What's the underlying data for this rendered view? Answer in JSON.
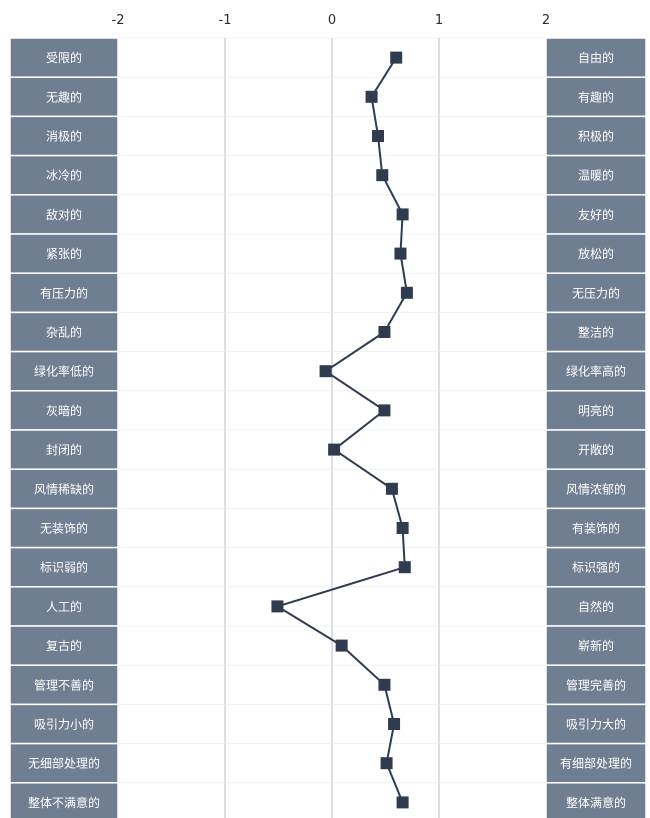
{
  "chart_data": {
    "type": "line",
    "x_ticks": [
      -2,
      -1,
      0,
      1,
      2
    ],
    "xlim": [
      -2,
      2
    ],
    "grid": true,
    "colors": {
      "label_bg": "#6f7e91",
      "label_border": "#ffffff",
      "grid": "#b7bfca",
      "line": "#2f3c4f",
      "marker": "#2f3c4f"
    },
    "items": [
      {
        "left": "受限的",
        "right": "自由的",
        "value": 0.6
      },
      {
        "left": "无趣的",
        "right": "有趣的",
        "value": 0.37
      },
      {
        "left": "消极的",
        "right": "积极的",
        "value": 0.43
      },
      {
        "left": "冰冷的",
        "right": "温暖的",
        "value": 0.47
      },
      {
        "left": "敌对的",
        "right": "友好的",
        "value": 0.66
      },
      {
        "left": "紧张的",
        "right": "放松的",
        "value": 0.64
      },
      {
        "left": "有压力的",
        "right": "无压力的",
        "value": 0.7
      },
      {
        "left": "杂乱的",
        "right": "整洁的",
        "value": 0.49
      },
      {
        "left": "绿化率低的",
        "right": "绿化率高的",
        "value": -0.06
      },
      {
        "left": "灰暗的",
        "right": "明亮的",
        "value": 0.49
      },
      {
        "left": "封闭的",
        "right": "开敞的",
        "value": 0.02
      },
      {
        "left": "风情稀缺的",
        "right": "风情浓郁的",
        "value": 0.56
      },
      {
        "left": "无装饰的",
        "right": "有装饰的",
        "value": 0.66
      },
      {
        "left": "标识弱的",
        "right": "标识强的",
        "value": 0.68
      },
      {
        "left": "人工的",
        "right": "自然的",
        "value": -0.51
      },
      {
        "left": "复古的",
        "right": "崭新的",
        "value": 0.09
      },
      {
        "left": "管理不善的",
        "right": "管理完善的",
        "value": 0.49
      },
      {
        "left": "吸引力小的",
        "right": "吸引力大的",
        "value": 0.58
      },
      {
        "left": "无细部处理的",
        "right": "有细部处理的",
        "value": 0.51
      },
      {
        "left": "整体不满意的",
        "right": "整体满意的",
        "value": 0.66
      }
    ]
  }
}
